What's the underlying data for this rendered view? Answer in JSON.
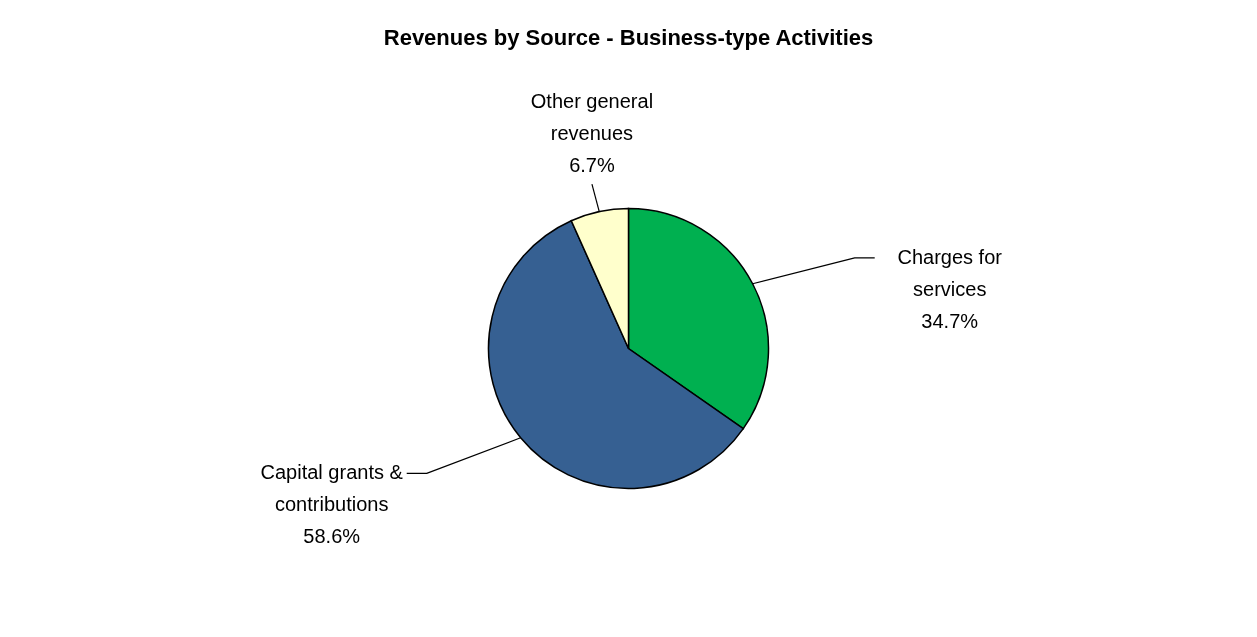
{
  "chart_data": {
    "type": "pie",
    "title": "Revenues by Source - Business-type Activities",
    "categories": [
      "Charges for services",
      "Capital grants & contributions",
      "Other general revenues"
    ],
    "values": [
      34.7,
      58.6,
      6.7
    ],
    "colors": [
      "#00b050",
      "#366092",
      "#ffffcc"
    ],
    "value_labels": [
      "34.7%",
      "58.6%",
      "6.7%"
    ],
    "legend": false
  }
}
